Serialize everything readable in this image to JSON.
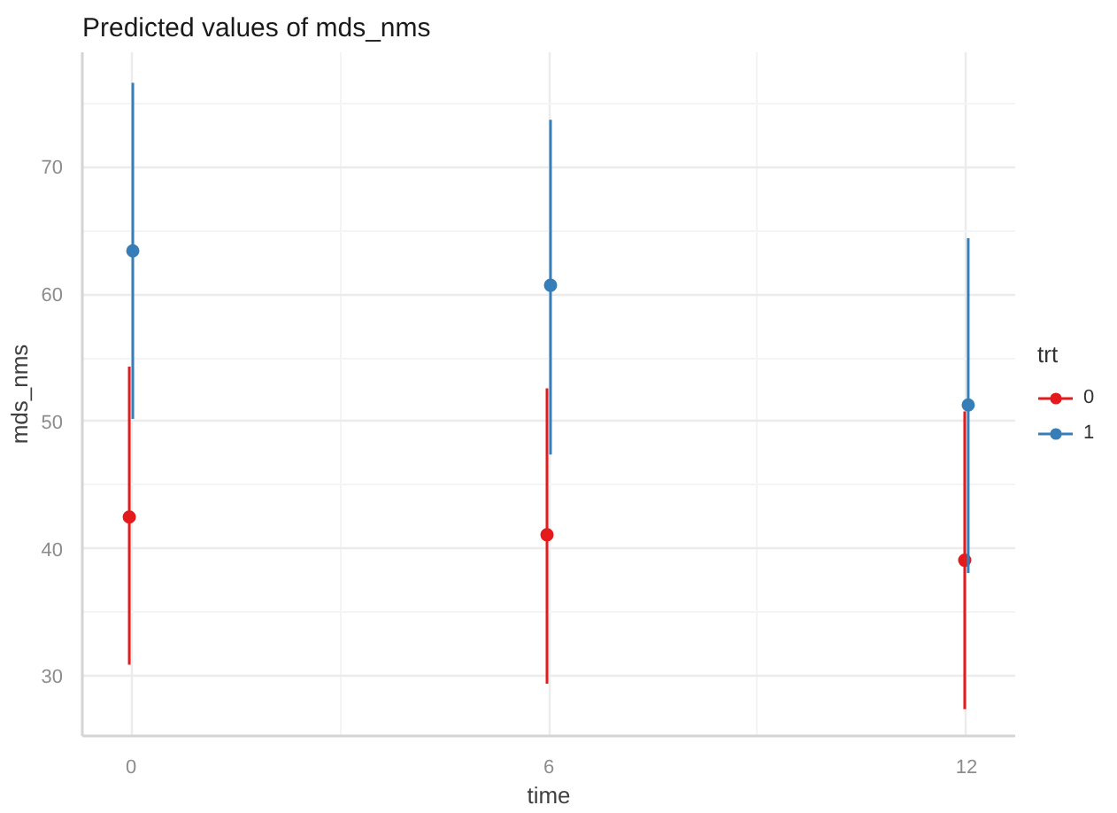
{
  "chart_data": {
    "type": "scatter",
    "title": "Predicted values of mds_nms",
    "xlabel": "time",
    "ylabel": "mds_nms",
    "legend_title": "trt",
    "x": [
      0,
      6,
      12
    ],
    "series": [
      {
        "name": "0",
        "color": "#e41a1c",
        "values": [
          42.5,
          41.1,
          39.1
        ],
        "errors": [
          [
            30.9,
            54.3
          ],
          [
            29.4,
            52.6
          ],
          [
            27.4,
            50.8
          ]
        ]
      },
      {
        "name": "1",
        "color": "#377eb8",
        "values": [
          63.4,
          60.7,
          51.3
        ],
        "errors": [
          [
            50.2,
            76.6
          ],
          [
            47.4,
            73.7
          ],
          [
            38.1,
            64.4
          ]
        ]
      }
    ],
    "xlim": [
      -0.7,
      12.7
    ],
    "ylim": [
      25.3,
      79
    ],
    "xticks": [
      0,
      6,
      12
    ],
    "yticks": [
      30,
      40,
      50,
      60,
      70
    ],
    "grid": true,
    "legend": "right",
    "marker": "circle"
  }
}
